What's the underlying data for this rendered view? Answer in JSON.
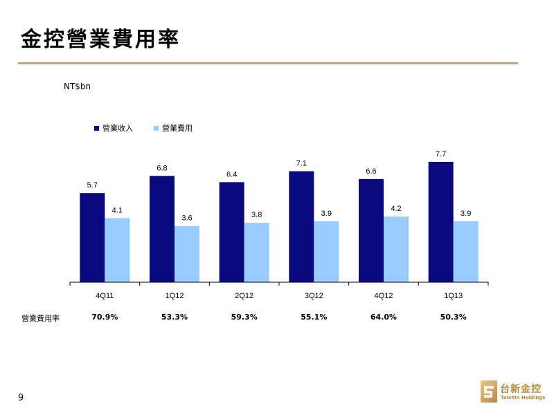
{
  "slide": {
    "title": "金控營業費用率",
    "unit": "NT$bn",
    "page_number": "9"
  },
  "colors": {
    "accent_rule": "#b8a47e",
    "series_revenue": "#0a0a80",
    "series_expense": "#99ccff"
  },
  "chart_data": {
    "type": "bar",
    "categories": [
      "4Q11",
      "1Q12",
      "2Q12",
      "3Q12",
      "4Q12",
      "1Q13"
    ],
    "series": [
      {
        "name": "營業收入",
        "values": [
          5.7,
          6.8,
          6.4,
          7.1,
          6.6,
          7.7
        ]
      },
      {
        "name": "營業費用",
        "values": [
          4.1,
          3.6,
          3.8,
          3.9,
          4.2,
          3.9
        ]
      }
    ],
    "ylabel": "NT$bn",
    "ylim": [
      0,
      10
    ],
    "grid": false,
    "legend": "top-left",
    "data_labels": true
  },
  "ratio_row": {
    "label": "營業費用率",
    "values": [
      "70.9%",
      "53.3%",
      "59.3%",
      "55.1%",
      "64.0%",
      "50.3%"
    ]
  },
  "logo": {
    "name_cn": "台新金控",
    "name_en": "Taishin Holdings"
  }
}
